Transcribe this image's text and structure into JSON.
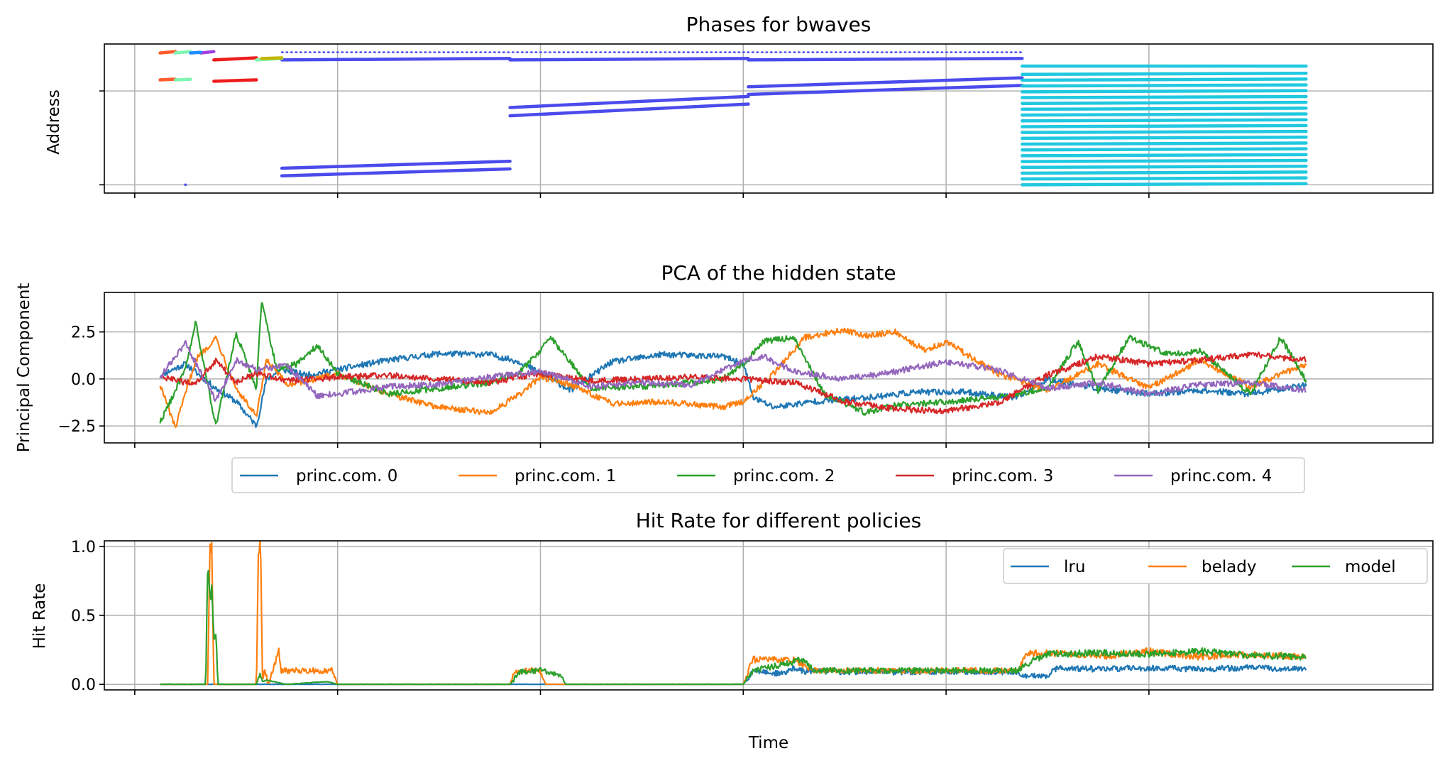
{
  "chart_data": [
    {
      "type": "scatter",
      "title": "Phases for bwaves",
      "ylabel": "Address",
      "xlabel": "",
      "x_range": [
        -3,
        128
      ],
      "y_range": [
        -0.06,
        1.02
      ],
      "grid": true,
      "x_grid": [
        0,
        20,
        40,
        60,
        80,
        100
      ],
      "y_grid": [
        0,
        0.68
      ],
      "segments": [
        {
          "color": "#4b4bec",
          "x0": 14.5,
          "x1": 87.5,
          "y": 0.96,
          "y1": 0.96,
          "dotted": true
        },
        {
          "color": "#4b4bec",
          "x0": 14.5,
          "x1": 37.0,
          "y": 0.905,
          "y1": 0.915
        },
        {
          "color": "#4b4bec",
          "x0": 37.0,
          "x1": 60.5,
          "y": 0.905,
          "y1": 0.915
        },
        {
          "color": "#4b4bec",
          "x0": 60.5,
          "x1": 87.5,
          "y": 0.905,
          "y1": 0.915
        },
        {
          "color": "#4b4bec",
          "x0": 37.0,
          "x1": 60.5,
          "y": 0.56,
          "y1": 0.64
        },
        {
          "color": "#4b4bec",
          "x0": 37.0,
          "x1": 60.5,
          "y": 0.5,
          "y1": 0.585
        },
        {
          "color": "#4b4bec",
          "x0": 60.5,
          "x1": 87.5,
          "y": 0.71,
          "y1": 0.775
        },
        {
          "color": "#4b4bec",
          "x0": 60.5,
          "x1": 87.5,
          "y": 0.655,
          "y1": 0.72
        },
        {
          "color": "#4b4bec",
          "x0": 14.5,
          "x1": 37.0,
          "y": 0.12,
          "y1": 0.17
        },
        {
          "color": "#4b4bec",
          "x0": 14.5,
          "x1": 37.0,
          "y": 0.065,
          "y1": 0.115
        },
        {
          "color": "#ee1c1c",
          "x0": 7.8,
          "x1": 12.0,
          "y": 0.905,
          "y1": 0.92
        },
        {
          "color": "#ee1c1c",
          "x0": 7.8,
          "x1": 12.0,
          "y": 0.75,
          "y1": 0.76
        },
        {
          "color": "#ff5a2a",
          "x0": 2.5,
          "x1": 4.0,
          "y": 0.955,
          "y1": 0.965
        },
        {
          "color": "#ff5a2a",
          "x0": 2.5,
          "x1": 4.0,
          "y": 0.76,
          "y1": 0.765
        },
        {
          "color": "#7ef5b0",
          "x0": 4.0,
          "x1": 5.5,
          "y": 0.955,
          "y1": 0.965
        },
        {
          "color": "#7ef5b0",
          "x0": 4.0,
          "x1": 5.5,
          "y": 0.76,
          "y1": 0.765
        },
        {
          "color": "#7ef5b0",
          "x0": 12.0,
          "x1": 14.5,
          "y": 0.905,
          "y1": 0.915
        },
        {
          "color": "#c4b600",
          "x0": 12.5,
          "x1": 14.5,
          "y": 0.915,
          "y1": 0.92
        },
        {
          "color": "#a040e0",
          "x0": 6.5,
          "x1": 7.8,
          "y": 0.955,
          "y1": 0.965
        },
        {
          "color": "#1e8fff",
          "x0": 5.5,
          "x1": 6.5,
          "y": 0.955,
          "y1": 0.96
        },
        {
          "color": "#20c8e0",
          "x0": 87.5,
          "x1": 115.5,
          "y": 0.86,
          "y1": 0.86
        }
      ],
      "block": {
        "color": "#20c8e0",
        "x0": 87.5,
        "x1": 115.5,
        "y0": 0.0,
        "y1": 0.8,
        "n": 20
      }
    },
    {
      "type": "line",
      "title": "PCA of the hidden state",
      "ylabel": "Principal Component",
      "xlabel": "",
      "x_range": [
        -3,
        128
      ],
      "y_range": [
        -3.4,
        4.6
      ],
      "grid": true,
      "y_ticks": [
        -2.5,
        0.0,
        2.5
      ],
      "y_tick_labels": [
        "−2.5",
        "0.0",
        "2.5"
      ],
      "x_grid": [
        0,
        20,
        40,
        60,
        80,
        100
      ],
      "legend_position": "below",
      "series": [
        {
          "name": "princ.com. 0",
          "color": "#1f77b4",
          "x": [
            2.5,
            5,
            8,
            10,
            12,
            13,
            14.5,
            17,
            20,
            25,
            30,
            35,
            38,
            40,
            43,
            47,
            52,
            58,
            60,
            61,
            63,
            67,
            72,
            77,
            82,
            87,
            90,
            95,
            100,
            105,
            110,
            115.5
          ],
          "y": [
            0.2,
            0.8,
            -0.5,
            -1.2,
            -2.5,
            0.0,
            0.5,
            0.2,
            0.5,
            1.0,
            1.35,
            1.3,
            0.9,
            0.3,
            -0.6,
            0.9,
            1.3,
            1.2,
            0.8,
            -1.0,
            -1.5,
            -1.2,
            -1.0,
            -0.7,
            -0.7,
            -1.0,
            0.0,
            -0.5,
            -0.8,
            -0.6,
            -0.8,
            -0.3
          ]
        },
        {
          "name": "princ.com. 1",
          "color": "#ff7f0e",
          "x": [
            2.5,
            4,
            6,
            8,
            10,
            12,
            13,
            15,
            18,
            20,
            25,
            30,
            35,
            38,
            40,
            43,
            47,
            52,
            58,
            60,
            63,
            66,
            70,
            72,
            75,
            78,
            80,
            85,
            90,
            95,
            100,
            105,
            110,
            115.5
          ],
          "y": [
            -0.3,
            -2.6,
            1.0,
            2.2,
            -0.5,
            -2.0,
            1.0,
            -0.3,
            0.0,
            0.3,
            -0.8,
            -1.5,
            -1.8,
            -0.8,
            0.1,
            -0.3,
            -1.3,
            -1.2,
            -1.5,
            -1.2,
            0.3,
            2.2,
            2.6,
            2.3,
            2.5,
            1.5,
            2.0,
            0.3,
            -0.6,
            0.8,
            -0.5,
            1.0,
            -0.4,
            0.8
          ]
        },
        {
          "name": "princ.com. 2",
          "color": "#2ca02c",
          "x": [
            2.5,
            5,
            6,
            8,
            10,
            12,
            12.5,
            14,
            16,
            18,
            20,
            25,
            30,
            35,
            38,
            40,
            41,
            45,
            50,
            55,
            58,
            60,
            62,
            65,
            68,
            72,
            75,
            80,
            85,
            90,
            93,
            95,
            98,
            102,
            105,
            110,
            113,
            115.5
          ],
          "y": [
            -2.3,
            0.5,
            3.0,
            -2.5,
            2.4,
            -0.5,
            4.2,
            0.5,
            0.8,
            1.8,
            0.3,
            -0.8,
            -0.5,
            -0.2,
            0.4,
            1.5,
            2.2,
            -0.5,
            -0.4,
            -0.2,
            0.0,
            0.8,
            2.0,
            2.2,
            -0.8,
            -1.8,
            -1.4,
            -1.2,
            -1.0,
            -0.5,
            2.0,
            -0.6,
            2.2,
            1.3,
            1.5,
            -0.8,
            2.2,
            -0.1
          ]
        },
        {
          "name": "princ.com. 3",
          "color": "#d62728",
          "x": [
            2.5,
            6,
            8,
            10,
            12,
            15,
            20,
            25,
            30,
            35,
            40,
            45,
            50,
            55,
            60,
            65,
            70,
            75,
            80,
            85,
            90,
            95,
            100,
            105,
            110,
            115.5
          ],
          "y": [
            0.1,
            -0.3,
            1.0,
            -0.2,
            0.3,
            -0.1,
            0.1,
            0.2,
            0.0,
            -0.2,
            0.3,
            -0.1,
            0.0,
            0.1,
            0.0,
            -0.2,
            -1.2,
            -1.6,
            -1.7,
            -1.3,
            0.2,
            1.2,
            0.8,
            1.0,
            1.3,
            1.0
          ]
        },
        {
          "name": "princ.com. 4",
          "color": "#9467bd",
          "x": [
            2.5,
            5,
            8,
            10,
            12,
            15,
            18,
            20,
            25,
            30,
            35,
            40,
            45,
            50,
            55,
            60,
            62,
            65,
            70,
            75,
            80,
            85,
            90,
            95,
            100,
            105,
            110,
            115.5
          ],
          "y": [
            0.1,
            1.9,
            -1.2,
            1.0,
            0.5,
            0.7,
            -0.9,
            -0.8,
            -0.4,
            -0.3,
            0.1,
            0.4,
            -0.4,
            -0.2,
            -0.3,
            1.0,
            1.2,
            0.4,
            0.0,
            0.4,
            0.9,
            0.5,
            -0.5,
            -0.2,
            -0.8,
            -0.3,
            -0.2,
            -0.6
          ]
        }
      ]
    },
    {
      "type": "line",
      "title": "Hit Rate for different policies",
      "ylabel": "Hit Rate",
      "xlabel": "Time",
      "x_range": [
        -3,
        128
      ],
      "y_range": [
        -0.04,
        1.04
      ],
      "grid": true,
      "y_ticks": [
        0.0,
        0.5,
        1.0
      ],
      "y_tick_labels": [
        "0.0",
        "0.5",
        "1.0"
      ],
      "x_grid": [
        0,
        20,
        40,
        60,
        80,
        100
      ],
      "legend_position": "upper right",
      "series": [
        {
          "name": "lru",
          "color": "#1f77b4",
          "x": [
            2.5,
            60,
            60.5,
            61,
            63,
            64,
            65,
            66,
            67,
            70,
            75,
            80,
            87,
            87.5,
            88,
            90,
            90.5,
            91,
            95,
            100,
            105,
            110,
            115.5
          ],
          "y": [
            0.0,
            0.0,
            0.05,
            0.1,
            0.08,
            0.08,
            0.12,
            0.09,
            0.1,
            0.09,
            0.09,
            0.09,
            0.09,
            0.06,
            0.06,
            0.06,
            0.1,
            0.12,
            0.11,
            0.12,
            0.11,
            0.12,
            0.11
          ]
        },
        {
          "name": "belady",
          "color": "#ff7f0e",
          "x": [
            2.5,
            7.2,
            7.4,
            7.6,
            7.8,
            12.0,
            12.2,
            12.4,
            12.6,
            12.8,
            13.2,
            14.2,
            14.4,
            14.6,
            19.5,
            20,
            37,
            37.5,
            40,
            40.5,
            41,
            60,
            60.5,
            61,
            65,
            67,
            70,
            75,
            80,
            87,
            88,
            90,
            95,
            100,
            105,
            110,
            115.5
          ],
          "y": [
            0.0,
            0.0,
            1.0,
            1.0,
            0.0,
            0.0,
            1.0,
            1.0,
            0.0,
            0.1,
            0.0,
            0.25,
            0.1,
            0.1,
            0.1,
            0.0,
            0.0,
            0.1,
            0.1,
            0.0,
            0.0,
            0.0,
            0.1,
            0.18,
            0.18,
            0.1,
            0.1,
            0.1,
            0.1,
            0.1,
            0.22,
            0.23,
            0.2,
            0.24,
            0.2,
            0.22,
            0.2
          ]
        },
        {
          "name": "model",
          "color": "#2ca02c",
          "x": [
            2.5,
            7.0,
            7.2,
            7.4,
            7.6,
            7.8,
            8.0,
            8.2,
            12.0,
            12.3,
            12.6,
            13,
            15,
            19,
            20,
            37,
            38,
            40,
            42,
            42.5,
            60,
            60.5,
            61,
            66,
            67,
            70,
            75,
            80,
            87,
            87.5,
            88,
            90,
            92,
            95,
            100,
            105,
            110,
            115.5
          ],
          "y": [
            0.0,
            0.0,
            0.88,
            0.6,
            0.7,
            0.3,
            0.38,
            0.0,
            0.0,
            0.08,
            0.02,
            0.03,
            0.0,
            0.02,
            0.0,
            0.0,
            0.09,
            0.1,
            0.06,
            0.0,
            0.0,
            0.05,
            0.1,
            0.18,
            0.1,
            0.1,
            0.1,
            0.1,
            0.1,
            0.12,
            0.15,
            0.22,
            0.22,
            0.23,
            0.22,
            0.24,
            0.21,
            0.2
          ]
        }
      ]
    }
  ]
}
